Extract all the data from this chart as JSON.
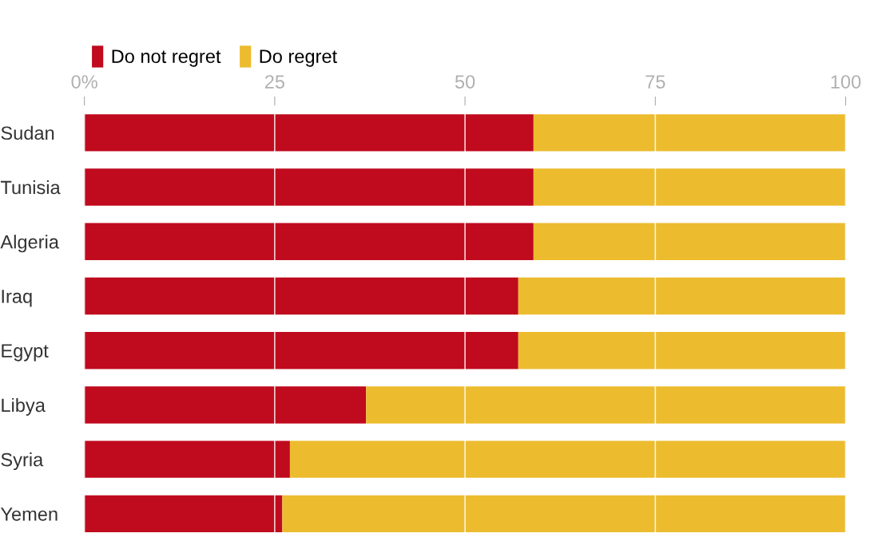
{
  "chart_data": {
    "type": "bar",
    "orientation": "horizontal",
    "stacked": true,
    "categories": [
      "Sudan",
      "Tunisia",
      "Algeria",
      "Iraq",
      "Egypt",
      "Libya",
      "Syria",
      "Yemen"
    ],
    "series": [
      {
        "name": "Do not regret",
        "color": "#c00a1e",
        "values": [
          59,
          59,
          59,
          57,
          57,
          37,
          27,
          26
        ]
      },
      {
        "name": "Do regret",
        "color": "#ecbc2e",
        "values": [
          41,
          41,
          41,
          43,
          43,
          63,
          73,
          74
        ]
      }
    ],
    "xlim": [
      0,
      100
    ],
    "xticks": [
      {
        "value": 0,
        "label": "0%"
      },
      25,
      50,
      75,
      100
    ],
    "grid": "x",
    "legend": "top left"
  }
}
